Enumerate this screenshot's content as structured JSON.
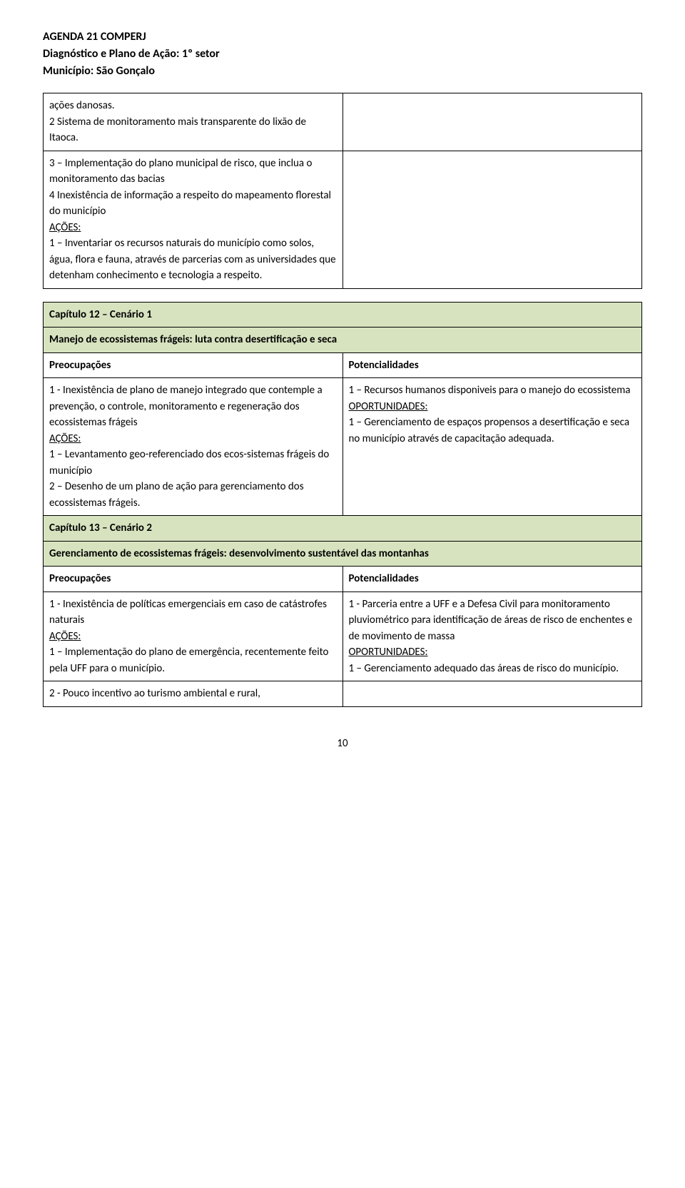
{
  "header": {
    "line1": "AGENDA 21 COMPERJ",
    "line2": "Diagnóstico e Plano de Ação: 1º setor",
    "line3": "Município: São Gonçalo"
  },
  "topTable": {
    "left": {
      "p1": "ações danosas.",
      "p2": "2 Sistema de monitoramento mais transparente do lixão de Itaoca."
    },
    "row2Left": {
      "p1": "3 – Implementação do plano municipal de risco, que inclua o monitoramento das bacias",
      "p2": "4 Inexistência de informação a respeito do mapeamento florestal do município",
      "acoes": "AÇÕES:",
      "p3": "1 – Inventariar os recursos naturais do município como solos, água, flora e fauna, através de parcerias com as universidades que detenham conhecimento e tecnologia a respeito."
    }
  },
  "chapter12": {
    "title": "Capítulo 12 – Cenário 1",
    "subtitle": "Manejo de ecossistemas frágeis: luta contra desertificação e seca",
    "colLeft": "Preocupações",
    "colRight": "Potencialidades",
    "left": {
      "p1": "1 - Inexistência de plano de manejo integrado  que contemple a prevenção, o controle, monitoramento e regeneração dos ecossistemas frágeis",
      "acoes": "AÇÕES:",
      "p2": "1 – Levantamento geo-referenciado dos ecos-sistemas frágeis do município",
      "p3": "2 – Desenho de um plano de ação para gerenciamento dos ecossistemas frágeis."
    },
    "right": {
      "p1": "1 – Recursos humanos disponiveis para o manejo do ecossistema",
      "op": "OPORTUNIDADES:",
      "p2": "1 – Gerenciamento de espaços propensos a desertificação e seca no município através de capacitação adequada."
    }
  },
  "chapter13": {
    "title": "Capítulo 13 – Cenário 2",
    "subtitle": "Gerenciamento de ecossistemas frágeis: desenvolvimento sustentável das montanhas",
    "colLeft": "Preocupações",
    "colRight": "Potencialidades",
    "row1Left": {
      "p1": "1 - Inexistência de políticas emergenciais em caso de catástrofes naturais",
      "acoes": "AÇÕES:",
      "p2": "1 – Implementação do plano de emergência, recentemente feito pela UFF para o município."
    },
    "row1Right": {
      "p1": "1 - Parceria entre a UFF e a Defesa Civil para monitoramento pluviométrico para identificação de áreas de risco de enchentes e de movimento de massa",
      "op": "OPORTUNIDADES:",
      "p2": "1 – Gerenciamento adequado das áreas de risco do município."
    },
    "row2Left": {
      "p1": "2 - Pouco incentivo ao turismo ambiental e rural,"
    }
  },
  "pageNumber": "10",
  "colors": {
    "greenRow": "#d7e3bf",
    "border": "#000000",
    "background": "#ffffff"
  }
}
